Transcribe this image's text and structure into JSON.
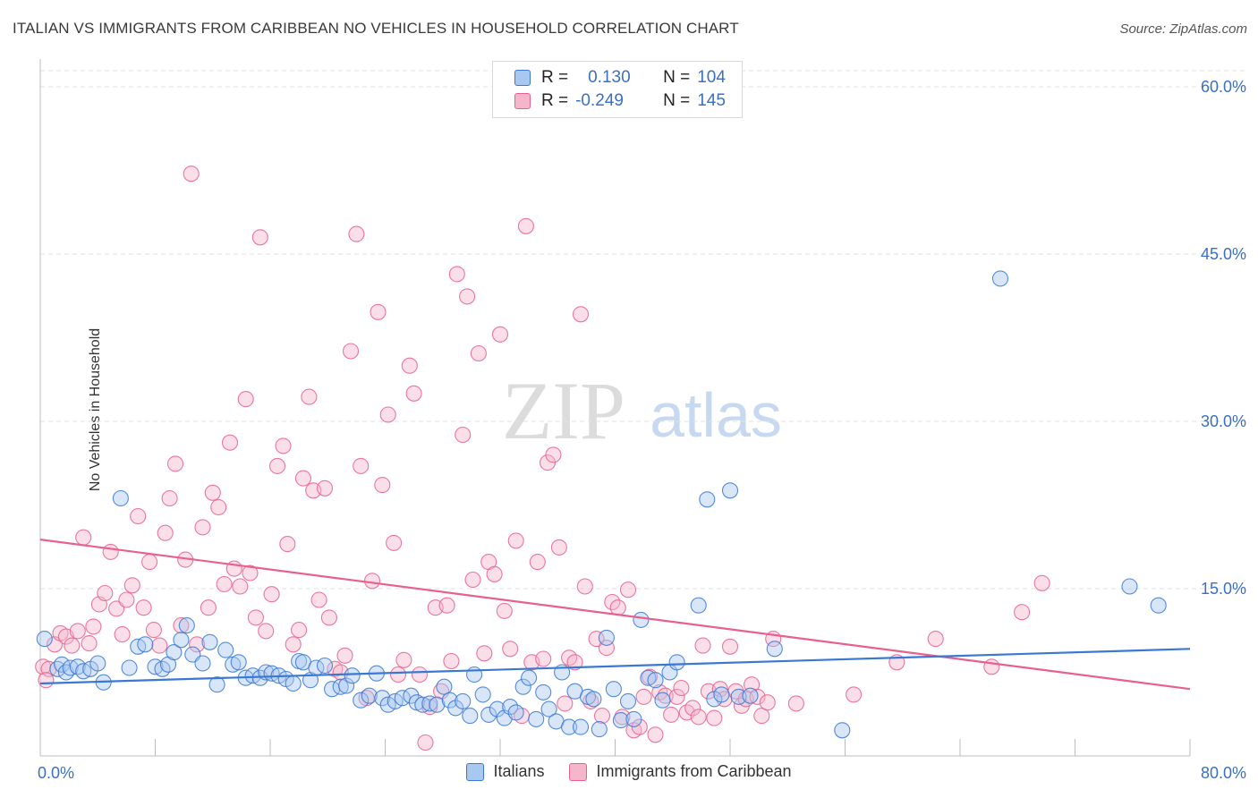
{
  "header": {
    "title": "ITALIAN VS IMMIGRANTS FROM CARIBBEAN NO VEHICLES IN HOUSEHOLD CORRELATION CHART",
    "source": "Source: ZipAtlas.com"
  },
  "watermark": {
    "zip": "ZIP",
    "atlas": "atlas"
  },
  "colors": {
    "blue": "#3a78d4",
    "blue_fill": "#a9c8f0",
    "pink": "#e8608f",
    "pink_fill": "#f5b6cb",
    "axis_text": "#3b6fc4",
    "grid": "#e2e2e2"
  },
  "legend": {
    "rows": [
      {
        "r_label": "R =",
        "r_value": "0.130",
        "n_label": "N =",
        "n_value": "104"
      },
      {
        "r_label": "R =",
        "r_value": "-0.249",
        "n_label": "N =",
        "n_value": "145"
      }
    ]
  },
  "bottom_legend": {
    "series1": "Italians",
    "series2": "Immigrants from Caribbean"
  },
  "chart_data": {
    "type": "scatter",
    "title": "ITALIAN VS IMMIGRANTS FROM CARIBBEAN NO VEHICLES IN HOUSEHOLD CORRELATION CHART",
    "xlabel": "",
    "ylabel": "No Vehicles in Household",
    "xlim": [
      0,
      80
    ],
    "ylim": [
      0,
      62
    ],
    "x_tick_labels": [
      "0.0%",
      "80.0%"
    ],
    "y_ticks": [
      15,
      30,
      45,
      60
    ],
    "y_tick_labels": [
      "15.0%",
      "30.0%",
      "45.0%",
      "60.0%"
    ],
    "grid": true,
    "legend_position": "top-center",
    "series": [
      {
        "name": "Italians",
        "r": 0.13,
        "n": 104,
        "trend": {
          "x": [
            0,
            80
          ],
          "y": [
            6.5,
            9.6
          ]
        },
        "points": [
          [
            0.3,
            10.5
          ],
          [
            1.2,
            7.8
          ],
          [
            1.5,
            8.2
          ],
          [
            1.8,
            7.5
          ],
          [
            2.1,
            7.9
          ],
          [
            2.6,
            8.0
          ],
          [
            3.0,
            7.6
          ],
          [
            3.5,
            7.8
          ],
          [
            4.0,
            8.3
          ],
          [
            4.4,
            6.6
          ],
          [
            5.6,
            23.1
          ],
          [
            6.2,
            7.9
          ],
          [
            6.8,
            9.8
          ],
          [
            7.3,
            10.0
          ],
          [
            8.0,
            8.0
          ],
          [
            8.5,
            7.8
          ],
          [
            8.9,
            8.2
          ],
          [
            9.3,
            9.3
          ],
          [
            9.8,
            10.4
          ],
          [
            10.2,
            11.7
          ],
          [
            10.6,
            9.1
          ],
          [
            11.3,
            8.3
          ],
          [
            11.8,
            10.2
          ],
          [
            12.3,
            6.4
          ],
          [
            12.9,
            9.5
          ],
          [
            13.4,
            8.2
          ],
          [
            13.8,
            8.4
          ],
          [
            14.3,
            7.0
          ],
          [
            14.8,
            7.2
          ],
          [
            15.3,
            7.0
          ],
          [
            15.7,
            7.5
          ],
          [
            16.1,
            7.4
          ],
          [
            16.6,
            7.2
          ],
          [
            17.1,
            6.9
          ],
          [
            17.6,
            6.5
          ],
          [
            18.0,
            8.5
          ],
          [
            18.3,
            8.4
          ],
          [
            18.8,
            6.8
          ],
          [
            19.2,
            7.9
          ],
          [
            19.8,
            8.1
          ],
          [
            20.3,
            6.0
          ],
          [
            20.9,
            6.2
          ],
          [
            21.3,
            6.3
          ],
          [
            21.7,
            7.2
          ],
          [
            22.3,
            5.0
          ],
          [
            22.9,
            5.4
          ],
          [
            23.4,
            7.4
          ],
          [
            23.8,
            5.2
          ],
          [
            24.2,
            4.6
          ],
          [
            24.7,
            4.9
          ],
          [
            25.2,
            5.2
          ],
          [
            25.8,
            5.4
          ],
          [
            26.2,
            4.8
          ],
          [
            26.6,
            4.6
          ],
          [
            27.1,
            4.7
          ],
          [
            27.6,
            4.6
          ],
          [
            28.1,
            6.2
          ],
          [
            28.5,
            5.0
          ],
          [
            28.9,
            4.3
          ],
          [
            29.4,
            4.9
          ],
          [
            29.9,
            3.6
          ],
          [
            30.2,
            7.3
          ],
          [
            30.8,
            5.5
          ],
          [
            31.2,
            3.7
          ],
          [
            31.8,
            4.2
          ],
          [
            32.3,
            3.4
          ],
          [
            32.7,
            4.4
          ],
          [
            33.1,
            3.9
          ],
          [
            33.6,
            6.2
          ],
          [
            34.0,
            7.0
          ],
          [
            34.5,
            3.3
          ],
          [
            35.0,
            5.7
          ],
          [
            35.4,
            4.2
          ],
          [
            35.9,
            3.1
          ],
          [
            36.3,
            7.5
          ],
          [
            36.8,
            2.6
          ],
          [
            37.2,
            5.8
          ],
          [
            37.6,
            2.6
          ],
          [
            38.1,
            5.3
          ],
          [
            38.5,
            5.1
          ],
          [
            38.9,
            2.4
          ],
          [
            39.4,
            10.6
          ],
          [
            39.9,
            6.0
          ],
          [
            40.4,
            3.2
          ],
          [
            40.9,
            4.9
          ],
          [
            41.3,
            3.3
          ],
          [
            41.8,
            12.2
          ],
          [
            42.3,
            7.0
          ],
          [
            42.8,
            6.8
          ],
          [
            43.3,
            5.0
          ],
          [
            43.8,
            7.5
          ],
          [
            44.3,
            8.4
          ],
          [
            45.8,
            13.5
          ],
          [
            46.4,
            23.0
          ],
          [
            46.9,
            5.1
          ],
          [
            47.4,
            5.5
          ],
          [
            48.0,
            23.8
          ],
          [
            48.6,
            5.3
          ],
          [
            49.4,
            5.4
          ],
          [
            51.1,
            9.6
          ],
          [
            55.8,
            2.3
          ],
          [
            66.8,
            42.8
          ],
          [
            75.8,
            15.2
          ],
          [
            77.8,
            13.5
          ]
        ]
      },
      {
        "name": "Immigrants from Caribbean",
        "r": -0.249,
        "n": 145,
        "trend": {
          "x": [
            0,
            80
          ],
          "y": [
            19.4,
            6.0
          ]
        },
        "points": [
          [
            0.2,
            8.0
          ],
          [
            0.6,
            7.8
          ],
          [
            1.0,
            10.0
          ],
          [
            1.4,
            11.0
          ],
          [
            1.8,
            10.7
          ],
          [
            2.2,
            9.9
          ],
          [
            2.6,
            11.2
          ],
          [
            3.0,
            19.6
          ],
          [
            3.4,
            10.1
          ],
          [
            3.7,
            11.6
          ],
          [
            4.1,
            13.6
          ],
          [
            4.5,
            14.6
          ],
          [
            4.9,
            18.3
          ],
          [
            5.3,
            13.2
          ],
          [
            5.7,
            10.9
          ],
          [
            6.0,
            14.0
          ],
          [
            6.4,
            15.3
          ],
          [
            6.8,
            21.5
          ],
          [
            7.2,
            13.3
          ],
          [
            7.6,
            17.4
          ],
          [
            7.9,
            11.3
          ],
          [
            8.3,
            9.9
          ],
          [
            8.7,
            20.0
          ],
          [
            9.0,
            23.1
          ],
          [
            9.4,
            26.2
          ],
          [
            9.8,
            11.7
          ],
          [
            10.1,
            17.6
          ],
          [
            10.5,
            52.2
          ],
          [
            10.9,
            10.0
          ],
          [
            11.3,
            20.5
          ],
          [
            11.7,
            13.3
          ],
          [
            12.0,
            23.6
          ],
          [
            12.4,
            22.3
          ],
          [
            12.8,
            15.4
          ],
          [
            13.2,
            28.1
          ],
          [
            13.5,
            16.8
          ],
          [
            13.9,
            15.2
          ],
          [
            14.3,
            32.0
          ],
          [
            14.6,
            16.4
          ],
          [
            15.0,
            12.4
          ],
          [
            15.3,
            46.5
          ],
          [
            15.7,
            11.2
          ],
          [
            16.1,
            14.5
          ],
          [
            16.5,
            26.0
          ],
          [
            16.9,
            27.8
          ],
          [
            17.2,
            19.0
          ],
          [
            17.6,
            10.0
          ],
          [
            18.0,
            11.3
          ],
          [
            18.3,
            24.9
          ],
          [
            18.7,
            32.2
          ],
          [
            19.0,
            23.8
          ],
          [
            19.4,
            14.0
          ],
          [
            19.8,
            24.0
          ],
          [
            20.1,
            12.4
          ],
          [
            20.5,
            7.8
          ],
          [
            20.9,
            7.5
          ],
          [
            21.2,
            9.0
          ],
          [
            21.6,
            36.3
          ],
          [
            22.0,
            46.8
          ],
          [
            22.3,
            26.0
          ],
          [
            22.7,
            5.2
          ],
          [
            23.1,
            15.7
          ],
          [
            23.5,
            39.8
          ],
          [
            23.8,
            24.3
          ],
          [
            24.2,
            30.6
          ],
          [
            24.6,
            19.1
          ],
          [
            24.9,
            7.3
          ],
          [
            25.3,
            8.6
          ],
          [
            25.7,
            35.0
          ],
          [
            26.0,
            32.5
          ],
          [
            26.4,
            7.3
          ],
          [
            26.8,
            1.2
          ],
          [
            27.1,
            4.4
          ],
          [
            27.5,
            13.3
          ],
          [
            27.9,
            5.8
          ],
          [
            28.3,
            13.5
          ],
          [
            28.6,
            8.5
          ],
          [
            29.0,
            43.2
          ],
          [
            29.4,
            28.8
          ],
          [
            29.7,
            41.2
          ],
          [
            30.1,
            15.8
          ],
          [
            30.5,
            36.1
          ],
          [
            30.9,
            9.2
          ],
          [
            31.2,
            17.4
          ],
          [
            31.6,
            16.3
          ],
          [
            32.0,
            37.8
          ],
          [
            32.3,
            13.0
          ],
          [
            32.7,
            9.6
          ],
          [
            33.1,
            19.3
          ],
          [
            33.5,
            3.6
          ],
          [
            33.8,
            47.5
          ],
          [
            34.2,
            8.4
          ],
          [
            34.6,
            17.4
          ],
          [
            35.0,
            8.7
          ],
          [
            35.3,
            26.3
          ],
          [
            35.7,
            27.0
          ],
          [
            36.1,
            18.7
          ],
          [
            36.5,
            4.7
          ],
          [
            36.8,
            8.8
          ],
          [
            37.2,
            8.4
          ],
          [
            37.6,
            39.6
          ],
          [
            37.9,
            15.2
          ],
          [
            38.3,
            4.9
          ],
          [
            38.7,
            10.5
          ],
          [
            39.1,
            3.6
          ],
          [
            39.4,
            9.7
          ],
          [
            39.8,
            13.8
          ],
          [
            40.2,
            13.3
          ],
          [
            40.5,
            3.5
          ],
          [
            40.9,
            14.9
          ],
          [
            41.3,
            2.3
          ],
          [
            41.7,
            2.6
          ],
          [
            42.0,
            5.3
          ],
          [
            42.4,
            7.1
          ],
          [
            42.8,
            1.9
          ],
          [
            43.1,
            5.7
          ],
          [
            43.5,
            5.4
          ],
          [
            43.9,
            3.7
          ],
          [
            44.3,
            5.3
          ],
          [
            44.6,
            6.1
          ],
          [
            45.0,
            3.9
          ],
          [
            45.4,
            4.3
          ],
          [
            45.8,
            3.5
          ],
          [
            46.1,
            9.9
          ],
          [
            46.5,
            5.8
          ],
          [
            46.9,
            3.4
          ],
          [
            47.3,
            6.0
          ],
          [
            47.6,
            5.1
          ],
          [
            48.0,
            9.8
          ],
          [
            48.4,
            5.8
          ],
          [
            48.8,
            4.5
          ],
          [
            49.1,
            5.1
          ],
          [
            49.5,
            6.4
          ],
          [
            49.9,
            5.3
          ],
          [
            50.2,
            3.6
          ],
          [
            50.6,
            4.8
          ],
          [
            51.0,
            10.5
          ],
          [
            52.6,
            4.7
          ],
          [
            56.6,
            5.5
          ],
          [
            59.6,
            8.4
          ],
          [
            62.3,
            10.5
          ],
          [
            66.2,
            8.0
          ],
          [
            68.3,
            12.9
          ],
          [
            69.7,
            15.5
          ],
          [
            0.4,
            6.8
          ]
        ]
      }
    ]
  }
}
